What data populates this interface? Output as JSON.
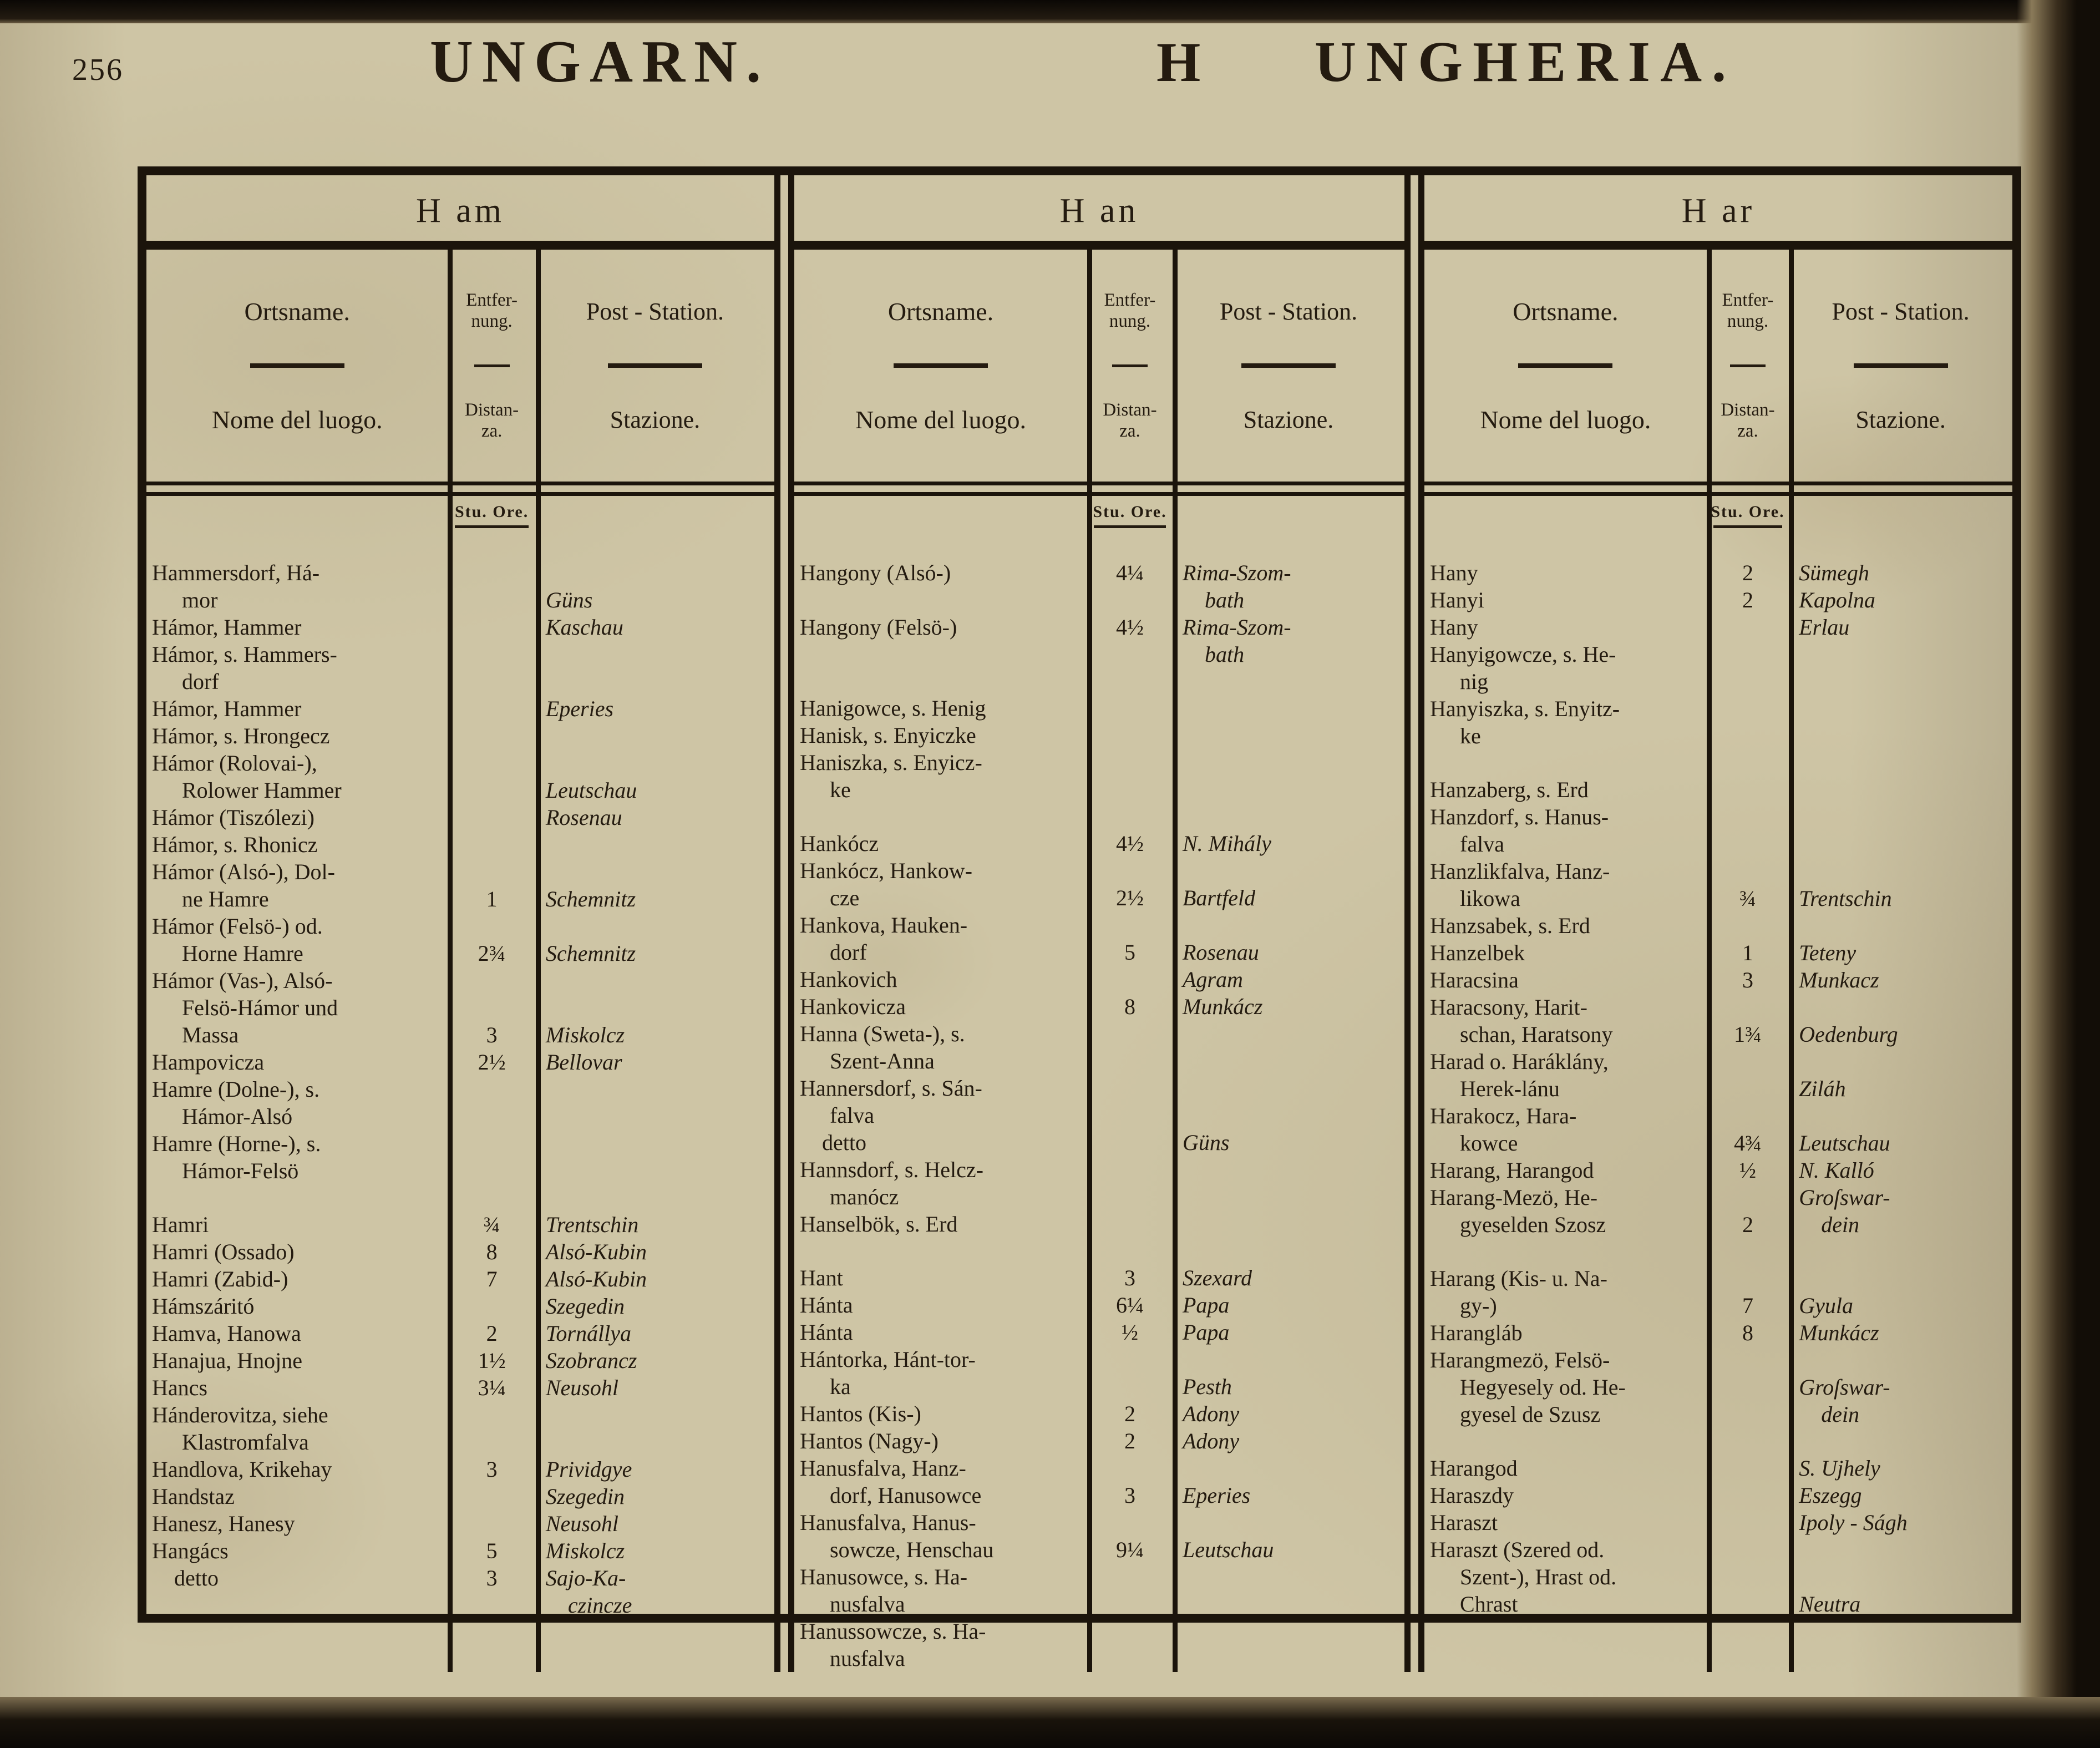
{
  "page": {
    "number": "256",
    "title_german": "UNGARN.",
    "section_letter": "H",
    "title_italian": "UNGHERIA."
  },
  "colors": {
    "paper": "#cec5a5",
    "ink": "#241b10",
    "rule": "#1b140b"
  },
  "columns_header": {
    "place_german": "Ortsname.",
    "place_italian": "Nome del luogo.",
    "distance_german": "Entfer-\nnung.",
    "distance_italian": "Distan-\nza.",
    "station_german": "Post - Station.",
    "station_italian": "Stazione.",
    "unit": "Stu. Ore."
  },
  "groups": [
    {
      "letter": "Ham",
      "letter_display": "H am",
      "rows": [
        {
          "n": "Hammersdorf, Há-\nmor",
          "d": "",
          "s": "Güns",
          "a": "bottom"
        },
        {
          "n": "Hámor, Hammer",
          "d": "",
          "s": "Kaschau"
        },
        {
          "n": "Hámor, s. Hammers-\ndorf",
          "d": "",
          "s": ""
        },
        {
          "n": "Hámor, Hammer",
          "d": "",
          "s": "Eperies"
        },
        {
          "n": "Hámor, s. Hrongecz",
          "d": "",
          "s": ""
        },
        {
          "n": "Hámor (Rolovai-),\nRolower Hammer",
          "d": "",
          "s": "Leutschau",
          "a": "bottom"
        },
        {
          "n": "Hámor (Tiszólezi)",
          "d": "",
          "s": "Rosenau"
        },
        {
          "n": "Hámor, s. Rhonicz",
          "d": "",
          "s": ""
        },
        {
          "n": "Hámor (Alsó-), Dol-\nne Hamre",
          "d": "1",
          "s": "Schemnitz",
          "a": "bottom"
        },
        {
          "n": "Hámor (Felsö-) od.\nHorne Hamre",
          "d": "2¾",
          "s": "Schemnitz",
          "a": "bottom"
        },
        {
          "n": "Hámor (Vas-), Alsó-\nFelsö-Hámor und\nMassa",
          "d": "3",
          "s": "Miskolcz",
          "a": "bottom"
        },
        {
          "n": "Hampovicza",
          "d": "2½",
          "s": "Bellovar"
        },
        {
          "n": "Hamre (Dolne-), s.\nHámor-Alsó",
          "d": "",
          "s": ""
        },
        {
          "n": "Hamre (Horne-), s.\nHámor-Felsö",
          "d": "",
          "s": ""
        },
        {
          "n": "Hamri",
          "d": "¾",
          "s": "Trentschin",
          "g": 1
        },
        {
          "n": "Hamri (Ossado)",
          "d": "8",
          "s": "Alsó-Kubin"
        },
        {
          "n": "Hamri (Zabid-)",
          "d": "7",
          "s": "Alsó-Kubin"
        },
        {
          "n": "Hámszáritó",
          "d": "",
          "s": "Szegedin"
        },
        {
          "n": "Hamva, Hanowa",
          "d": "2",
          "s": "Tornállya"
        },
        {
          "n": "Hanajua, Hnojne",
          "d": "1½",
          "s": "Szobrancz"
        },
        {
          "n": "Hancs",
          "d": "3¼",
          "s": "Neusohl"
        },
        {
          "n": "Hánderovitza, siehe\nKlastromfalva",
          "d": "",
          "s": ""
        },
        {
          "n": "Handlova, Krikehay",
          "d": "3",
          "s": "Prividgye"
        },
        {
          "n": "Handstaz",
          "d": "",
          "s": "Szegedin"
        },
        {
          "n": "Hanesz, Hanesy",
          "d": "",
          "s": "Neusohl"
        },
        {
          "n": "Hangács",
          "d": "5",
          "s": "Miskolcz"
        },
        {
          "n": "detto",
          "i": 1,
          "d": "3",
          "s": "Sajo-Ka-\nczincze"
        }
      ]
    },
    {
      "letter": "Han",
      "letter_display": "H an",
      "rows": [
        {
          "n": "Hangony (Alsó-)",
          "d": "4¼",
          "s": "Rima-Szom-\nbath"
        },
        {
          "n": "Hangony (Felsö-)",
          "d": "4½",
          "s": "Rima-Szom-\nbath"
        },
        {
          "n": "Hanigowce, s. Henig",
          "d": "",
          "s": "",
          "g": 1
        },
        {
          "n": "Hanisk, s. Enyiczke",
          "d": "",
          "s": ""
        },
        {
          "n": "Haniszka, s. Enyicz-\nke",
          "d": "",
          "s": ""
        },
        {
          "n": "Hankócz",
          "d": "4½",
          "s": "N. Mihály",
          "g": 1
        },
        {
          "n": "Hankócz, Hankow-\ncze",
          "d": "2½",
          "s": "Bartfeld",
          "a": "bottom"
        },
        {
          "n": "Hankova, Hauken-\ndorf",
          "d": "5",
          "s": "Rosenau",
          "a": "bottom"
        },
        {
          "n": "Hankovich",
          "d": "",
          "s": "Agram"
        },
        {
          "n": "Hankovicza",
          "d": "8",
          "s": "Munkácz"
        },
        {
          "n": "Hanna (Sweta-), s.\nSzent-Anna",
          "d": "",
          "s": ""
        },
        {
          "n": "Hannersdorf, s. Sán-\nfalva",
          "d": "",
          "s": ""
        },
        {
          "n": "detto",
          "i": 1,
          "d": "",
          "s": "Güns"
        },
        {
          "n": "Hannsdorf, s. Helcz-\nmanócz",
          "d": "",
          "s": ""
        },
        {
          "n": "Hanselbök, s. Erd",
          "d": "",
          "s": ""
        },
        {
          "n": "Hant",
          "d": "3",
          "s": "Szexard",
          "g": 1
        },
        {
          "n": "Hánta",
          "d": "6¼",
          "s": "Papa"
        },
        {
          "n": "Hánta",
          "d": "½",
          "s": "Papa"
        },
        {
          "n": "Hántorka, Hánt-tor-\nka",
          "d": "",
          "s": "Pesth",
          "a": "bottom"
        },
        {
          "n": "Hantos (Kis-)",
          "d": "2",
          "s": "Adony"
        },
        {
          "n": "Hantos (Nagy-)",
          "d": "2",
          "s": "Adony"
        },
        {
          "n": "Hanusfalva, Hanz-\ndorf, Hanusowce",
          "d": "3",
          "s": "Eperies",
          "a": "bottom"
        },
        {
          "n": "Hanusfalva, Hanus-\nsowcze, Henschau",
          "d": "9¼",
          "s": "Leutschau",
          "a": "bottom"
        },
        {
          "n": "Hanusowce, s. Ha-\nnusfalva",
          "d": "",
          "s": ""
        },
        {
          "n": "Hanussowcze, s. Ha-\nnusfalva",
          "d": "",
          "s": ""
        }
      ]
    },
    {
      "letter": "Har",
      "letter_display": "H ar",
      "rows": [
        {
          "n": "Hany",
          "d": "2",
          "s": "Sümegh"
        },
        {
          "n": "Hanyi",
          "d": "2",
          "s": "Kapolna"
        },
        {
          "n": "Hany",
          "d": "",
          "s": "Erlau"
        },
        {
          "n": "Hanyigowcze, s. He-\nnig",
          "d": "",
          "s": ""
        },
        {
          "n": "Hanyiszka, s. Enyitz-\nke",
          "d": "",
          "s": ""
        },
        {
          "n": "Hanzaberg, s. Erd",
          "d": "",
          "s": "",
          "g": 1
        },
        {
          "n": "Hanzdorf, s. Hanus-\nfalva",
          "d": "",
          "s": ""
        },
        {
          "n": "Hanzlikfalva, Hanz-\nlikowa",
          "d": "¾",
          "s": "Trentschin",
          "a": "bottom"
        },
        {
          "n": "Hanzsabek, s. Erd",
          "d": "",
          "s": ""
        },
        {
          "n": "Hanzelbek",
          "d": "1",
          "s": "Teteny"
        },
        {
          "n": "Haracsina",
          "d": "3",
          "s": "Munkacz"
        },
        {
          "n": "Haracsony, Harit-\nschan, Haratsony",
          "d": "1¾",
          "s": "Oedenburg",
          "a": "bottom"
        },
        {
          "n": "Harad o. Haráklány,\nHerek-lánu",
          "d": "",
          "s": "Ziláh",
          "a": "bottom"
        },
        {
          "n": "Harakocz, Hara-\nkowce",
          "d": "4¾",
          "s": "Leutschau",
          "a": "bottom"
        },
        {
          "n": "Harang, Harangod",
          "d": "½",
          "s": "N. Kalló"
        },
        {
          "n": "Harang-Mezö, He-\ngyeselden Szosz",
          "d": "2",
          "s": "Groſswar-\ndein",
          "a": "bottom"
        },
        {
          "n": "Harang (Kis- u. Na-\ngy-)",
          "d": "7",
          "s": "Gyula",
          "a": "bottom",
          "g": 1
        },
        {
          "n": "Harangláb",
          "d": "8",
          "s": "Munkácz"
        },
        {
          "n": "Harangmezö, Felsö-\nHegyesely od. He-\ngyesel de Szusz",
          "d": "",
          "s": "Groſswar-\ndein",
          "a": "bottom"
        },
        {
          "n": "Harangod",
          "d": "",
          "s": "S. Ujhely",
          "g": 1
        },
        {
          "n": "Haraszdy",
          "d": "",
          "s": "Eszegg"
        },
        {
          "n": "Haraszt",
          "d": "",
          "s": "Ipoly - Ságh"
        },
        {
          "n": "Haraszt (Szered od.\nSzent-), Hrast od.\nChrast",
          "d": "",
          "s": "Neutra",
          "a": "bottom"
        }
      ]
    }
  ]
}
